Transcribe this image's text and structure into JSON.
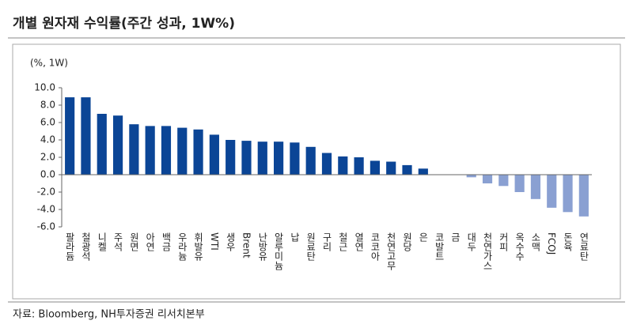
{
  "chart_data": {
    "type": "bar",
    "title": "개별 원자재 수익률(주간 성과, 1W%)",
    "unit_label": "(%, 1W)",
    "source": "자료: Bloomberg, NH투자증권 리서치본부",
    "categories": [
      "팔라듐",
      "철광석",
      "니켈",
      "주석",
      "원면",
      "아연",
      "백금",
      "우라늄",
      "휘발유",
      "WTI",
      "생우",
      "Brent",
      "난방유",
      "알루미늄",
      "납",
      "원료탄",
      "구리",
      "철근",
      "열연",
      "코코아",
      "천연고무",
      "원당",
      "은",
      "코발트",
      "금",
      "대두",
      "천연가스",
      "커피",
      "옥수수",
      "소맥",
      "FCOJ",
      "돈육",
      "연료탄"
    ],
    "values": [
      8.9,
      8.9,
      7.0,
      6.8,
      5.8,
      5.6,
      5.6,
      5.4,
      5.2,
      4.6,
      4.0,
      3.9,
      3.8,
      3.8,
      3.7,
      3.2,
      2.5,
      2.1,
      2.0,
      1.6,
      1.5,
      1.1,
      0.7,
      0.0,
      0.0,
      -0.3,
      -1.0,
      -1.3,
      -2.0,
      -2.8,
      -3.8,
      -4.3,
      -4.8
    ],
    "positive_color": "#0b4596",
    "negative_color": "#8aa0d2",
    "ylim": [
      -6,
      10
    ],
    "yticks": [
      {
        "value": -6,
        "label": "-6.0"
      },
      {
        "value": -4,
        "label": "-4.0"
      },
      {
        "value": -2,
        "label": "-2.0"
      },
      {
        "value": 0,
        "label": "0.0"
      },
      {
        "value": 2,
        "label": "2.0"
      },
      {
        "value": 4,
        "label": "4.0"
      },
      {
        "value": 6,
        "label": "6.0"
      },
      {
        "value": 8,
        "label": "8.0"
      },
      {
        "value": 10,
        "label": "10.0"
      }
    ]
  }
}
